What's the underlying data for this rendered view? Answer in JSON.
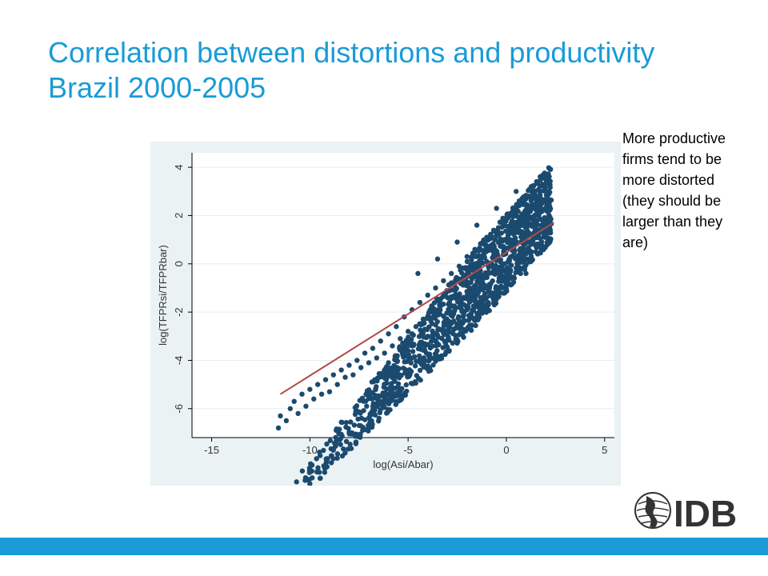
{
  "slide": {
    "title_line1": "Correlation between distortions and productivity",
    "title_line2": "Brazil 2000-2005",
    "annotation": "More productive firms tend to be more distorted (they should be larger than they are)",
    "logo_text": "IDB",
    "accent_color": "#1a9bd7"
  },
  "chart_data": {
    "type": "scatter",
    "xlabel": "log(Asi/Abar)",
    "ylabel": "log(TFPRsi/TFPRbar)",
    "xlim": [
      -16,
      5.5
    ],
    "ylim": [
      -7.2,
      4.6
    ],
    "x_ticks": [
      -15,
      -10,
      -5,
      0,
      5
    ],
    "y_ticks": [
      -6,
      -4,
      -2,
      0,
      2,
      4
    ],
    "x_tick_labels": [
      "-15",
      "-10",
      "-5",
      "0",
      "5"
    ],
    "y_tick_labels": [
      "-6",
      "-4",
      "-2",
      "0",
      "2",
      "4"
    ],
    "grid": true,
    "series": [
      {
        "type": "scatter",
        "color": "#1b4a6f",
        "points": [
          [
            -11.6,
            -6.8
          ],
          [
            -11.5,
            -6.3
          ],
          [
            -11.2,
            -6.5
          ],
          [
            -11.0,
            -6.0
          ],
          [
            -10.8,
            -5.7
          ],
          [
            -10.6,
            -6.2
          ],
          [
            -10.4,
            -5.4
          ],
          [
            -10.2,
            -5.9
          ],
          [
            -10.0,
            -5.2
          ],
          [
            -9.8,
            -5.6
          ],
          [
            -9.6,
            -5.0
          ],
          [
            -9.4,
            -5.4
          ],
          [
            -9.2,
            -4.8
          ],
          [
            -9.0,
            -5.3
          ],
          [
            -8.8,
            -4.6
          ],
          [
            -8.6,
            -5.0
          ],
          [
            -8.4,
            -4.4
          ],
          [
            -8.2,
            -4.7
          ],
          [
            -8.0,
            -4.2
          ],
          [
            -7.8,
            -4.6
          ],
          [
            -7.6,
            -4.0
          ],
          [
            -7.4,
            -4.3
          ],
          [
            -7.2,
            -3.7
          ],
          [
            -7.0,
            -4.1
          ],
          [
            -6.8,
            -3.5
          ],
          [
            -6.6,
            -3.9
          ],
          [
            -6.4,
            -3.2
          ],
          [
            -6.2,
            -3.7
          ],
          [
            -6.0,
            -2.9
          ],
          [
            -5.8,
            -3.4
          ],
          [
            -5.6,
            -2.6
          ],
          [
            -5.4,
            -3.1
          ],
          [
            -5.2,
            -2.2
          ],
          [
            -5.0,
            -2.8
          ],
          [
            -4.8,
            -1.9
          ],
          [
            -4.6,
            -2.6
          ],
          [
            -4.4,
            -1.6
          ],
          [
            -4.2,
            -2.3
          ],
          [
            -4.0,
            -1.3
          ],
          [
            -3.8,
            -2.0
          ],
          [
            -3.6,
            -1.0
          ],
          [
            -3.4,
            -1.7
          ],
          [
            -3.2,
            -0.7
          ],
          [
            -3.0,
            -1.4
          ],
          [
            -2.8,
            -0.4
          ],
          [
            -2.6,
            -1.1
          ],
          [
            -2.4,
            -0.1
          ],
          [
            -2.2,
            -0.8
          ],
          [
            -2.0,
            0.3
          ],
          [
            -1.8,
            -0.5
          ],
          [
            -1.6,
            0.6
          ],
          [
            -1.4,
            -0.2
          ],
          [
            -1.2,
            0.9
          ],
          [
            -1.0,
            0.1
          ],
          [
            -0.8,
            1.2
          ],
          [
            -0.6,
            0.4
          ],
          [
            -0.4,
            1.5
          ],
          [
            -0.2,
            0.7
          ],
          [
            0.0,
            1.9
          ],
          [
            0.2,
            1.0
          ],
          [
            0.4,
            2.3
          ],
          [
            0.6,
            1.3
          ],
          [
            0.8,
            2.7
          ],
          [
            1.0,
            1.6
          ],
          [
            1.2,
            3.1
          ],
          [
            1.4,
            1.9
          ],
          [
            1.6,
            3.4
          ],
          [
            1.8,
            2.2
          ],
          [
            2.0,
            3.6
          ],
          [
            2.2,
            1.5
          ],
          [
            1.0,
            -0.4
          ],
          [
            0.0,
            -0.8
          ],
          [
            -1.0,
            -1.4
          ],
          [
            -2.0,
            -1.9
          ],
          [
            -3.0,
            -2.5
          ],
          [
            -4.0,
            -3.0
          ],
          [
            -5.0,
            -3.6
          ],
          [
            -6.0,
            -4.1
          ],
          [
            -3.5,
            0.2
          ],
          [
            -2.5,
            0.9
          ],
          [
            -1.5,
            1.6
          ],
          [
            -0.5,
            2.3
          ],
          [
            0.5,
            3.0
          ],
          [
            -4.5,
            -0.4
          ],
          [
            1.5,
            0.5
          ],
          [
            2.2,
            0.9
          ]
        ]
      },
      {
        "type": "line",
        "name": "",
        "color": "#b04a4a",
        "x": [
          -11.5,
          2.4
        ],
        "y": [
          -5.4,
          1.7
        ]
      }
    ]
  }
}
